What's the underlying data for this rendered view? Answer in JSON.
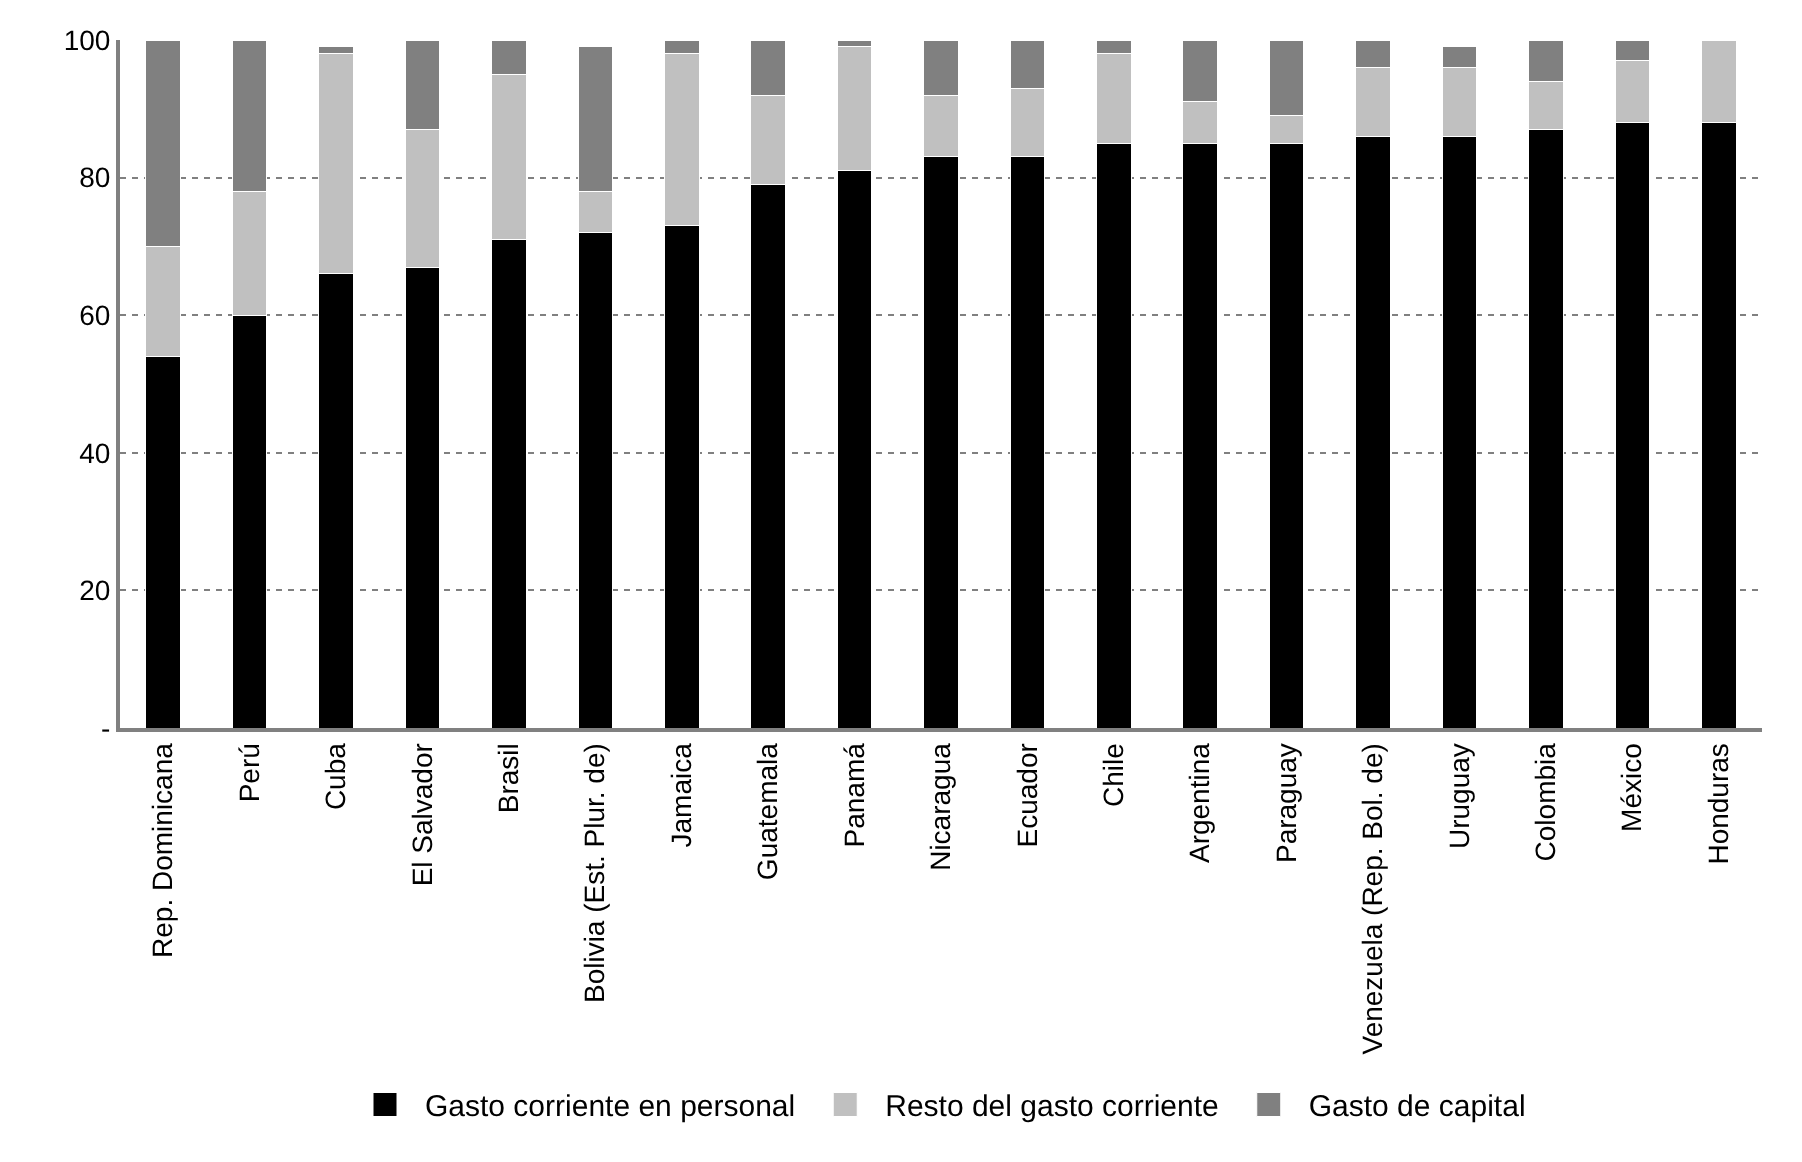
{
  "chart_data": {
    "type": "bar",
    "stacked": true,
    "categories": [
      "Rep. Dominicana",
      "Perú",
      "Cuba",
      "El Salvador",
      "Brasil",
      "Bolivia (Est. Plur. de)",
      "Jamaica",
      "Guatemala",
      "Panamá",
      "Nicaragua",
      "Ecuador",
      "Chile",
      "Argentina",
      "Paraguay",
      "Venezuela (Rep. Bol. de)",
      "Uruguay",
      "Colombia",
      "México",
      "Honduras"
    ],
    "series": [
      {
        "name": "Gasto corriente en personal",
        "color": "#000000",
        "values": [
          54,
          60,
          66,
          67,
          71,
          72,
          73,
          79,
          81,
          83,
          83,
          85,
          85,
          85,
          86,
          86,
          87,
          88,
          88
        ]
      },
      {
        "name": "Resto del gasto corriente",
        "color": "#c0c0c0",
        "values": [
          16,
          18,
          32,
          20,
          24,
          6,
          25,
          13,
          18,
          9,
          10,
          13,
          6,
          4,
          10,
          10,
          7,
          9,
          12
        ]
      },
      {
        "name": "Gasto de capital",
        "color": "#808080",
        "values": [
          30,
          22,
          1,
          13,
          5,
          21,
          2,
          8,
          1,
          8,
          7,
          2,
          9,
          11,
          4,
          3,
          6,
          3,
          null
        ]
      }
    ],
    "ylim": [
      0,
      100
    ],
    "yticks": [
      {
        "value": 0,
        "label": "-"
      },
      20,
      40,
      60,
      80,
      100
    ],
    "grid": "y",
    "legend": "bottom"
  }
}
